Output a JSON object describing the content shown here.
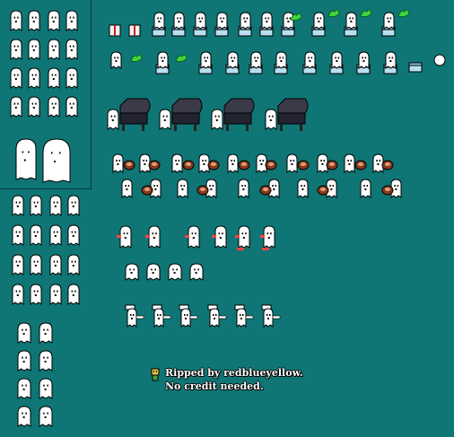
{
  "sheet": {
    "background": "#0f7575",
    "ghost_body_color": "#ffffff",
    "ghost_outline_color": "#000000",
    "ghost_shadow_color": "#b0c4c4",
    "piano_color": "#3a3a48",
    "box_color": "#b8e0f0",
    "flame_color": "#3fd33f",
    "pie_color": "#8a3a1a",
    "sign_color": "#ff4444"
  },
  "groups": [
    "single-ghost-frames",
    "giant-ghost-frames",
    "side-walk-frames",
    "bouncing-ghost-frames",
    "present-box-sequence",
    "flame-sequence",
    "piano-sequence",
    "pie-throw-sequence",
    "sign-holder-sequence",
    "face-sequence",
    "chef-hat-sequence"
  ],
  "credit": {
    "icon": "ripper-icon",
    "line1": "Ripped by redblueyellow.",
    "line2": "No credit needed."
  }
}
